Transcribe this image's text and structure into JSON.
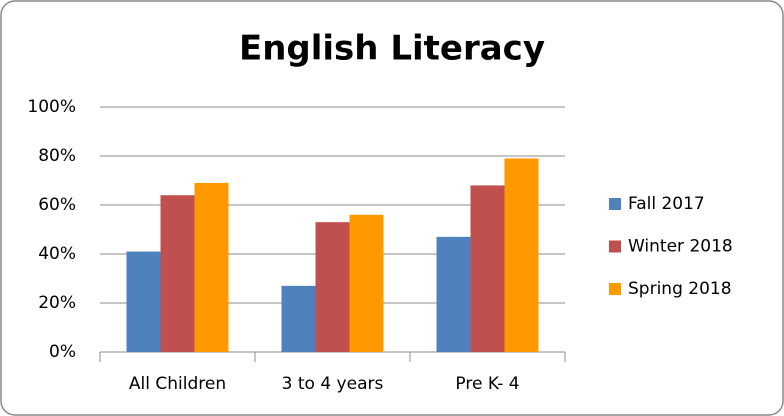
{
  "chart_data": {
    "type": "bar",
    "title": "English Literacy",
    "categories": [
      "All Children",
      "3 to 4 years",
      "Pre K- 4"
    ],
    "series": [
      {
        "name": "Fall 2017",
        "color": "#4f81bd",
        "values": [
          41,
          27,
          47
        ]
      },
      {
        "name": "Winter 2018",
        "color": "#c0504d",
        "values": [
          64,
          53,
          68
        ]
      },
      {
        "name": "Spring 2018",
        "color": "#ff9900",
        "values": [
          69,
          56,
          79
        ]
      }
    ],
    "ylim": [
      0,
      100
    ],
    "yticks": [
      {
        "value": 0,
        "label": "0%"
      },
      {
        "value": 20,
        "label": "20%"
      },
      {
        "value": 40,
        "label": "40%"
      },
      {
        "value": 60,
        "label": "60%"
      },
      {
        "value": 80,
        "label": "80%"
      },
      {
        "value": 100,
        "label": "100%"
      }
    ],
    "grid": true,
    "legend": "right"
  }
}
